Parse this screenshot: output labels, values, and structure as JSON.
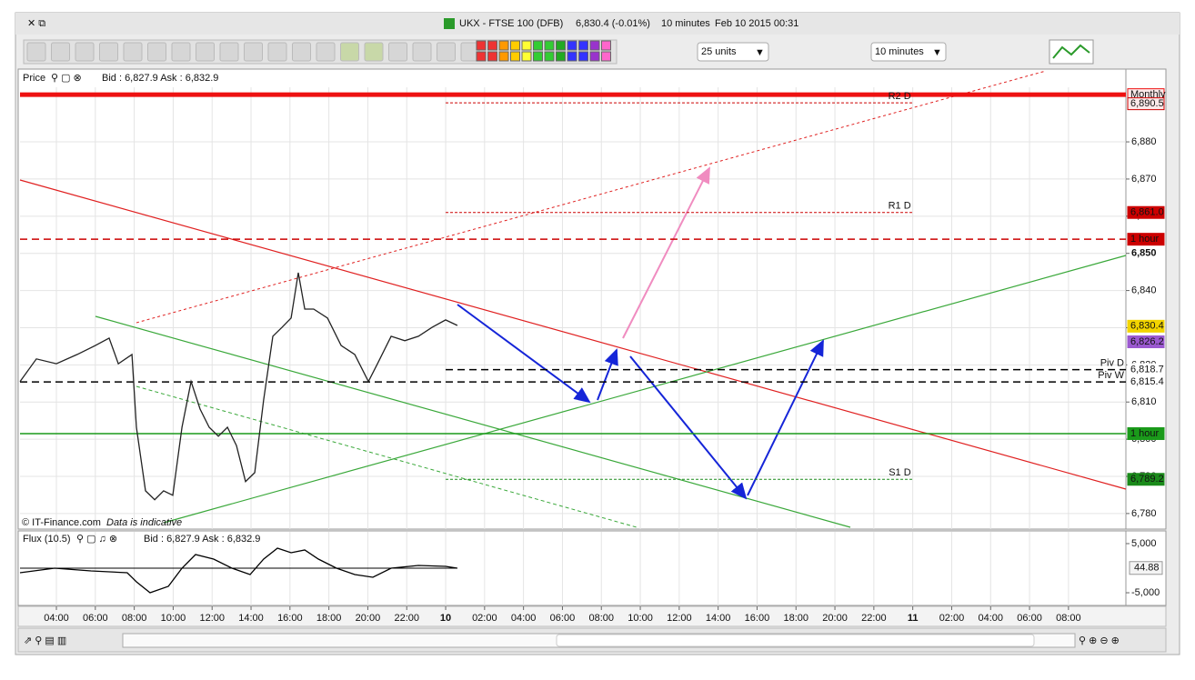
{
  "window": {
    "symbol": "UKX - FTSE 100 (DFB)",
    "quote": "6,830.4 (-0.01%)",
    "interval": "10 minutes",
    "timestamp": "Feb 10 2015 00:31"
  },
  "toolbar": {
    "units": "25 units",
    "timeframe": "10 minutes"
  },
  "price_panel": {
    "name": "Price",
    "quote": "Bid : 6,827.9 Ask : 6,832.9",
    "copyright": "© IT-Finance.com",
    "disclaimer": "Data is indicative"
  },
  "flux_panel": {
    "name": "Flux (10.5)",
    "quote": "Bid : 6,827.9 Ask : 6,832.9"
  },
  "chart_data": [
    {
      "type": "line",
      "color": "#222222",
      "grid": true,
      "x": [
        2.13,
        2.97,
        4,
        5.07,
        6.0,
        6.71,
        7.18,
        7.88,
        8.11,
        8.58,
        9.05,
        9.51,
        9.98,
        10.45,
        10.92,
        11.38,
        11.85,
        12.32,
        12.79,
        13.25,
        13.72,
        14.19,
        14.65,
        15.12,
        15.59,
        16.06,
        16.43,
        16.76,
        17.22,
        17.93,
        18.63,
        19.33,
        20.03,
        20.5,
        21.2,
        21.9,
        22.6,
        23.3,
        24.0,
        24.6
      ],
      "values": [
        6815.5,
        6821.6,
        6820.3,
        6822.8,
        6825.2,
        6827.2,
        6820.3,
        6822.8,
        6803.2,
        6786.1,
        6783.7,
        6786.1,
        6784.9,
        6803.2,
        6815.5,
        6808.1,
        6803.2,
        6800.8,
        6803.2,
        6798.3,
        6788.6,
        6791.0,
        6810.6,
        6827.7,
        6830.1,
        6832.6,
        6844.8,
        6835.0,
        6835.0,
        6832.6,
        6825.2,
        6822.8,
        6815.5,
        6820.3,
        6827.7,
        6826.5,
        6827.7,
        6830.1,
        6832.1,
        6830.6
      ],
      "xlim": [
        2.13,
        58.95
      ],
      "ylim": [
        6776.3,
        6894.2
      ],
      "xticks": [
        {
          "value": 4,
          "label": "04:00"
        },
        {
          "value": 6,
          "label": "06:00"
        },
        {
          "value": 8,
          "label": "08:00"
        },
        {
          "value": 10,
          "label": "10:00"
        },
        {
          "value": 12,
          "label": "12:00"
        },
        {
          "value": 14,
          "label": "14:00"
        },
        {
          "value": 16,
          "label": "16:00"
        },
        {
          "value": 18,
          "label": "18:00"
        },
        {
          "value": 20,
          "label": "20:00"
        },
        {
          "value": 22,
          "label": "22:00"
        },
        {
          "value": 24,
          "label": "10"
        },
        {
          "value": 26,
          "label": "02:00"
        },
        {
          "value": 28,
          "label": "04:00"
        },
        {
          "value": 30,
          "label": "06:00"
        },
        {
          "value": 32,
          "label": "08:00"
        },
        {
          "value": 34,
          "label": "10:00"
        },
        {
          "value": 36,
          "label": "12:00"
        },
        {
          "value": 38,
          "label": "14:00"
        },
        {
          "value": 40,
          "label": "16:00"
        },
        {
          "value": 42,
          "label": "18:00"
        },
        {
          "value": 44,
          "label": "20:00"
        },
        {
          "value": 46,
          "label": "22:00"
        },
        {
          "value": 48,
          "label": "11"
        },
        {
          "value": 50,
          "label": "02:00"
        },
        {
          "value": 52,
          "label": "04:00"
        },
        {
          "value": 54,
          "label": "06:00"
        },
        {
          "value": 56,
          "label": "08:00"
        }
      ],
      "yticks": [
        {
          "value": 6780,
          "label": "6,780"
        },
        {
          "value": 6790,
          "label": "6,790"
        },
        {
          "value": 6800,
          "label": "6,800"
        },
        {
          "value": 6810,
          "label": "6,810"
        },
        {
          "value": 6820,
          "label": "6,820"
        },
        {
          "value": 6830,
          "label": "6,830"
        },
        {
          "value": 6840,
          "label": "6,840"
        },
        {
          "value": 6850,
          "label": "6,850"
        },
        {
          "value": 6860,
          "label": "6,860"
        },
        {
          "value": 6870,
          "label": "6,870"
        },
        {
          "value": 6880,
          "label": "6,880"
        }
      ],
      "levels": [
        {
          "tag": "Monthly",
          "value": 6892.7,
          "color": "#ee1111",
          "style": "thick"
        },
        {
          "name": "R2 D",
          "tag": "6,890.5",
          "value": 6890.5,
          "color": "#cc0000",
          "style": "dotted",
          "x": [
            24,
            48
          ]
        },
        {
          "name": "R1 D",
          "tag": "6,861.0",
          "value": 6861.0,
          "color": "#cc0000",
          "style": "dotted",
          "x": [
            24,
            48
          ]
        },
        {
          "tag": "1 hour",
          "value": 6853.8,
          "color": "#cc0000",
          "style": "dashed"
        },
        {
          "name": "Piv D",
          "tag": "6,818.7",
          "value": 6818.7,
          "color": "#000000",
          "style": "dashed",
          "x": [
            24,
            58.95
          ]
        },
        {
          "name": "Piv W",
          "tag": "6,815.4",
          "value": 6815.4,
          "color": "#000000",
          "style": "dashed"
        },
        {
          "tag": "1 hour",
          "value": 6801.5,
          "color": "#1a9a1a",
          "style": "solid"
        },
        {
          "name": "S1 D",
          "tag": "6,789.2",
          "value": 6789.2,
          "color": "#1a8a1a",
          "style": "dotted",
          "x": [
            24,
            48
          ]
        },
        {
          "tag": "6,830.4",
          "value": 6830.4,
          "color": "#f2d400",
          "style": "none"
        },
        {
          "tag": "6,826.2",
          "value": 6826.2,
          "color": "#9b59d0",
          "style": "none"
        }
      ]
    },
    {
      "type": "line",
      "color": "#000000",
      "x": [
        2.13,
        3.91,
        5.78,
        7.64,
        8.11,
        8.81,
        9.75,
        10.45,
        11.15,
        12.08,
        13.02,
        13.95,
        14.65,
        15.36,
        16.06,
        16.76,
        17.46,
        18.39,
        19.33,
        20.26,
        21.2,
        22.6,
        24.0,
        24.6
      ],
      "values": [
        -925,
        0,
        -555,
        -925,
        -2775,
        -5000,
        -3700,
        0,
        2775,
        1850,
        0,
        -1295,
        1850,
        4070,
        3145,
        3700,
        1850,
        0,
        -1295,
        -1850,
        0,
        555,
        370,
        0
      ],
      "xlim": [
        2.13,
        58.95
      ],
      "ylim": [
        -7400,
        7400
      ],
      "yticks": [
        {
          "value": 5000,
          "label": "5,000"
        },
        {
          "value": -5000,
          "label": "-5,000"
        }
      ],
      "last_value": 44.88
    }
  ]
}
